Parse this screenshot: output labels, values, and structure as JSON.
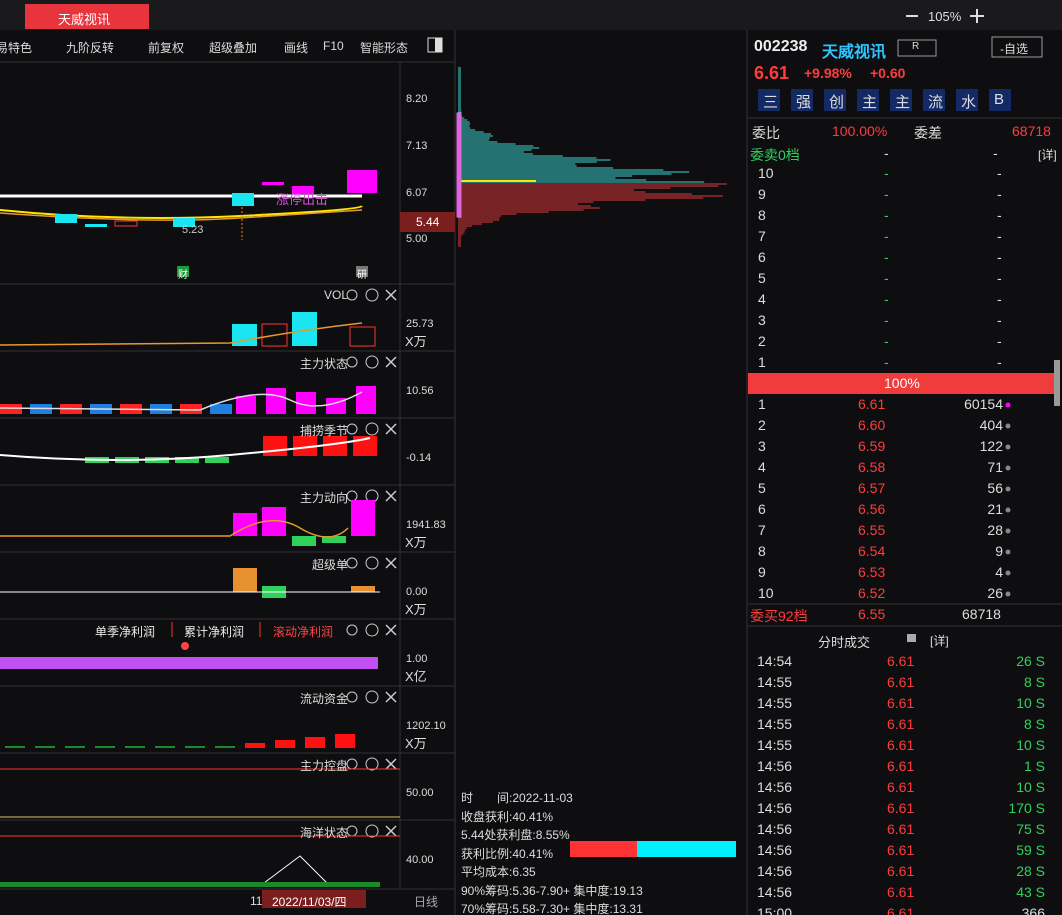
{
  "tab": "天威视讯",
  "zoom": "105%",
  "toolbar": [
    "易特色",
    "九阶反转",
    "前复权",
    "超级叠加",
    "画线",
    "F10",
    "智能形态"
  ],
  "main": {
    "price_ticks": [
      "8.20",
      "7.13",
      "6.07",
      "5.00"
    ],
    "current": "5.44",
    "low_label": "5.23",
    "signal": "涨停出击",
    "badges": [
      "财",
      "研"
    ]
  },
  "panels": [
    {
      "title": "VOL",
      "value": "25.73",
      "unit": "X万"
    },
    {
      "title": "主力状态",
      "value": "10.56"
    },
    {
      "title": "捕捞季节",
      "value": "-0.14"
    },
    {
      "title": "主力动向",
      "value": "1941.83",
      "unit": "X万"
    },
    {
      "title": "超级单",
      "value": "0.00",
      "unit": "X万"
    },
    {
      "titles": [
        "单季净利润",
        "累计净利润",
        "滚动净利润"
      ],
      "value": "1.00",
      "unit": "X亿"
    },
    {
      "title": "流动资金",
      "value": "1202.10",
      "unit": "X万"
    },
    {
      "title": "主力控盘",
      "value": "50.00"
    },
    {
      "title": "海洋状态",
      "value": "40.00"
    }
  ],
  "footer": {
    "month": "11",
    "date": "2022/11/03/四",
    "period": "日线"
  },
  "chips": [
    "时　　间:2022-11-03",
    "收盘获利:40.41%",
    "5.44处获利盘:8.55%",
    "获利比例:40.41%",
    "平均成本:6.35",
    "90%筹码:5.36-7.90+ 集中度:19.13",
    "70%筹码:5.58-7.30+ 集中度:13.31"
  ],
  "quote": {
    "code": "002238",
    "name": "天威视讯",
    "flag": "R",
    "watch": "-自选",
    "price": "6.61",
    "pct": "+9.98%",
    "chg": "+0.60",
    "buttons": [
      "三",
      "强",
      "创",
      "主",
      "主",
      "流",
      "水",
      "B"
    ],
    "ratio_label": "委比",
    "ratio": "100.00%",
    "diff_label": "委差",
    "diff": "68718",
    "sell_label": "委卖0档",
    "sell_price": "-",
    "sell_vol": "-",
    "detail": "[详]",
    "asks": [
      [
        "10",
        "-",
        "-"
      ],
      [
        "9",
        "-",
        "-"
      ],
      [
        "8",
        "-",
        "-"
      ],
      [
        "7",
        "-",
        "-"
      ],
      [
        "6",
        "-",
        "-"
      ],
      [
        "5",
        "-",
        "-"
      ],
      [
        "4",
        "-",
        "-"
      ],
      [
        "3",
        "-",
        "-"
      ],
      [
        "2",
        "-",
        "-"
      ],
      [
        "1",
        "-",
        "-"
      ]
    ],
    "bar": "100%",
    "bids": [
      [
        "1",
        "6.61",
        "60154"
      ],
      [
        "2",
        "6.60",
        "404"
      ],
      [
        "3",
        "6.59",
        "122"
      ],
      [
        "4",
        "6.58",
        "71"
      ],
      [
        "5",
        "6.57",
        "56"
      ],
      [
        "6",
        "6.56",
        "21"
      ],
      [
        "7",
        "6.55",
        "28"
      ],
      [
        "8",
        "6.54",
        "9"
      ],
      [
        "9",
        "6.53",
        "4"
      ],
      [
        "10",
        "6.52",
        "26"
      ]
    ],
    "buy_label": "委买92档",
    "buy_price": "6.55",
    "buy_vol": "68718"
  },
  "trades": {
    "title": "分时成交",
    "detail": "[详]",
    "rows": [
      [
        "14:54",
        "6.61",
        "26 S"
      ],
      [
        "14:55",
        "6.61",
        "8 S"
      ],
      [
        "14:55",
        "6.61",
        "10 S"
      ],
      [
        "14:55",
        "6.61",
        "8 S"
      ],
      [
        "14:55",
        "6.61",
        "10 S"
      ],
      [
        "14:56",
        "6.61",
        "1 S"
      ],
      [
        "14:56",
        "6.61",
        "10 S"
      ],
      [
        "14:56",
        "6.61",
        "170 S"
      ],
      [
        "14:56",
        "6.61",
        "75 S"
      ],
      [
        "14:56",
        "6.61",
        "59 S"
      ],
      [
        "14:56",
        "6.61",
        "28 S"
      ],
      [
        "14:56",
        "6.61",
        "43 S"
      ],
      [
        "15:00",
        "6.61",
        "366"
      ]
    ]
  }
}
